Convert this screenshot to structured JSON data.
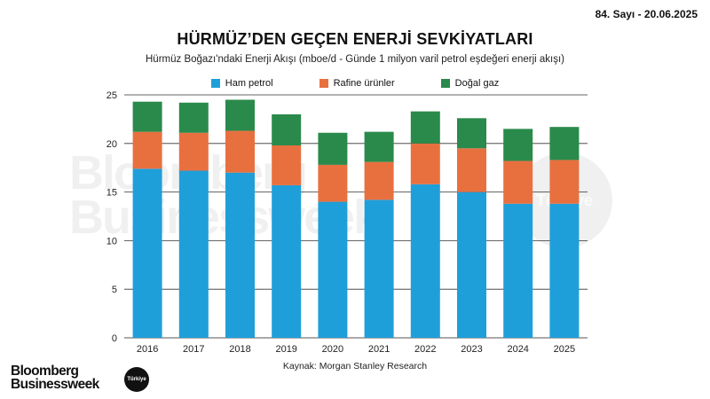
{
  "header": {
    "issue": "84. Sayı - 20.06.2025",
    "title": "HÜRMÜZ’DEN GEÇEN ENERJİ SEVKİYATLARI",
    "subtitle": "Hürmüz Boğazı'ndaki Enerji Akışı (mboe/d - Günde 1 milyon varil petrol eşdeğeri enerji akışı)"
  },
  "source": "Kaynak: Morgan Stanley Research",
  "brand": {
    "logo_line1": "Bloomberg",
    "logo_line2": "Businessweek",
    "badge": "Türkiye"
  },
  "colors": {
    "crude": "#1f9fd9",
    "refined": "#e8703f",
    "gas": "#2a8a4b"
  },
  "chart_data": {
    "type": "bar",
    "stacked": true,
    "categories": [
      "2016",
      "2017",
      "2018",
      "2019",
      "2020",
      "2021",
      "2022",
      "2023",
      "2024",
      "2025"
    ],
    "series": [
      {
        "name": "Ham petrol",
        "values": [
          17.4,
          17.2,
          17.0,
          15.7,
          14.0,
          14.2,
          15.8,
          15.0,
          13.8,
          13.8
        ]
      },
      {
        "name": "Rafine ürünler",
        "values": [
          3.8,
          3.9,
          4.3,
          4.1,
          3.8,
          3.9,
          4.2,
          4.5,
          4.4,
          4.5
        ]
      },
      {
        "name": "Doğal gaz",
        "values": [
          3.1,
          3.1,
          3.2,
          3.2,
          3.3,
          3.1,
          3.3,
          3.1,
          3.3,
          3.4
        ]
      }
    ],
    "ylim": [
      0,
      25
    ],
    "yticks": [
      0,
      5,
      10,
      15,
      20,
      25
    ],
    "grid": true,
    "legend": "top-center"
  }
}
